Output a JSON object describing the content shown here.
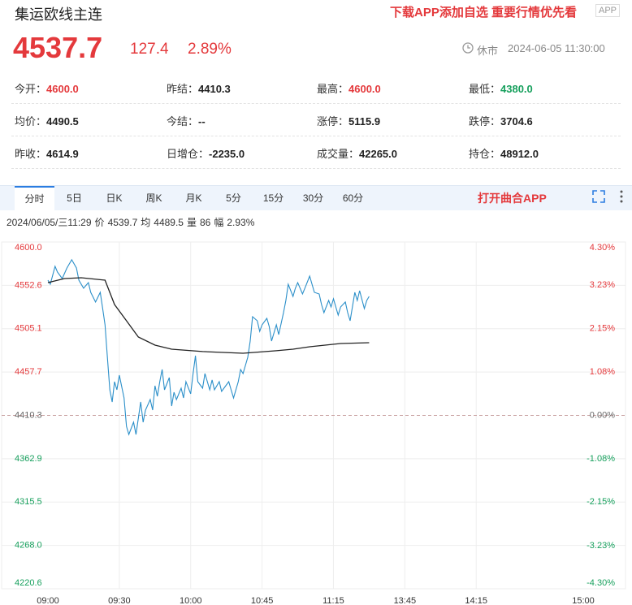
{
  "header": {
    "title": "集运欧线主连",
    "promo": "下载APP添加自选 重要行情优先看",
    "app_badge": "APP",
    "price": "4537.7",
    "change": "127.4",
    "change_pct": "2.89%",
    "status": "休市",
    "datetime": "2024-06-05 11:30:00"
  },
  "stats": [
    {
      "label": "今开：",
      "value": "4600.0",
      "color": "#e4393c"
    },
    {
      "label": "昨结：",
      "value": "4410.3",
      "color": "#222222"
    },
    {
      "label": "最高：",
      "value": "4600.0",
      "color": "#e4393c"
    },
    {
      "label": "最低：",
      "value": "4380.0",
      "color": "#17a05d"
    },
    {
      "label": "均价：",
      "value": "4490.5",
      "color": "#222222"
    },
    {
      "label": "今结：",
      "value": "--",
      "color": "#222222"
    },
    {
      "label": "涨停：",
      "value": "5115.9",
      "color": "#222222"
    },
    {
      "label": "跌停：",
      "value": "3704.6",
      "color": "#222222"
    },
    {
      "label": "昨收：",
      "value": "4614.9",
      "color": "#222222"
    },
    {
      "label": "日增仓：",
      "value": "-2235.0",
      "color": "#222222"
    },
    {
      "label": "成交量：",
      "value": "42265.0",
      "color": "#222222"
    },
    {
      "label": "持仓：",
      "value": "48912.0",
      "color": "#222222"
    }
  ],
  "tabs": [
    "分时",
    "5日",
    "日K",
    "周K",
    "月K",
    "5分",
    "15分",
    "30分",
    "60分"
  ],
  "active_tab": 0,
  "open_app": "打开曲合APP",
  "info": [
    "2024/06/05/三11:29",
    "价",
    "4539.7",
    "均",
    "4489.5",
    "量",
    "86",
    "幅",
    "2.93%"
  ],
  "chart_data": {
    "type": "line",
    "xlim": [
      0,
      225
    ],
    "xticks": [
      {
        "value": 0,
        "label": "09:00"
      },
      {
        "value": 30,
        "label": "09:30"
      },
      {
        "value": 60,
        "label": "10:00"
      },
      {
        "value": 90,
        "label": "10:45"
      },
      {
        "value": 120,
        "label": "11:15"
      },
      {
        "value": 150,
        "label": "13:45"
      },
      {
        "value": 180,
        "label": "14:15"
      },
      {
        "value": 225,
        "label": "15:00"
      }
    ],
    "ylim": [
      4220.6,
      4600
    ],
    "yticks": [
      {
        "value": 4600,
        "label": "4600.0"
      },
      4552.6,
      4505.1,
      4457.7,
      4410.3,
      4362.9,
      4315.5,
      {
        "value": 4268,
        "label": "4268.0"
      },
      4220.6
    ],
    "y2lim": [
      -4.3,
      4.3
    ],
    "y2ticks": [
      {
        "value": 4.3,
        "label": "4.30%"
      },
      {
        "value": 3.23,
        "label": "3.23%"
      },
      {
        "value": 2.15,
        "label": "2.15%"
      },
      {
        "value": 1.08,
        "label": "1.08%"
      },
      {
        "value": 0,
        "label": "0.00%"
      },
      {
        "value": -1.08,
        "label": "-1.08%"
      },
      {
        "value": -2.15,
        "label": "-2.15%"
      },
      {
        "value": -3.23,
        "label": "-3.23%"
      },
      {
        "value": -4.3,
        "label": "-4.30%"
      }
    ],
    "up_color": "#e4393c",
    "down_color": "#17a05d",
    "grid": true,
    "series": [
      {
        "color": "#2b8fc9",
        "x": [
          0,
          1,
          3,
          4,
          6,
          8,
          10,
          12,
          13,
          15,
          17,
          18,
          20,
          22,
          23,
          24,
          25,
          26,
          27,
          28,
          29,
          30,
          32,
          33,
          34,
          36,
          37,
          39,
          40,
          41,
          43,
          44,
          45,
          46,
          47,
          48,
          49,
          51,
          52,
          53,
          54,
          56,
          57,
          58,
          60,
          61,
          62,
          63,
          65,
          66,
          68,
          69,
          70,
          72,
          73,
          74,
          76,
          77,
          78,
          80,
          81,
          82,
          84,
          85,
          86,
          88,
          89,
          90,
          92,
          93,
          94,
          96,
          97,
          99,
          100,
          101,
          103,
          104,
          105,
          107,
          108,
          110,
          111,
          112,
          114,
          115,
          116,
          118,
          119,
          120,
          122,
          123,
          125,
          126,
          127,
          129,
          130,
          131,
          133,
          134,
          135
        ],
        "values": [
          4558.2,
          4553.8,
          4573.3,
          4567.1,
          4560.0,
          4571.6,
          4580.5,
          4571.6,
          4558.2,
          4549.4,
          4555.6,
          4544.9,
          4534.3,
          4544.9,
          4527.1,
          4509.4,
          4473.8,
          4438.3,
          4425.0,
          4447.2,
          4438.3,
          4454.3,
          4429.4,
          4398.3,
          4389.4,
          4402.8,
          4389.4,
          4425.0,
          4402.8,
          4416.1,
          4427.6,
          4416.1,
          4442.7,
          4431.2,
          4447.2,
          4460.5,
          4438.3,
          4451.6,
          4420.5,
          4435.6,
          4427.6,
          4440.1,
          4429.4,
          4447.2,
          4433.9,
          4456.1,
          4475.6,
          4447.2,
          4440.1,
          4456.1,
          4438.3,
          4449.0,
          4438.3,
          4447.2,
          4436.5,
          4440.1,
          4447.2,
          4438.3,
          4429.4,
          4447.2,
          4460.5,
          4456.1,
          4473.8,
          4491.6,
          4518.3,
          4513.8,
          4502.3,
          4509.4,
          4516.5,
          4507.6,
          4491.6,
          4509.4,
          4498.7,
          4522.7,
          4536.0,
          4553.8,
          4540.5,
          4549.4,
          4555.6,
          4543.1,
          4549.4,
          4562.7,
          4553.8,
          4544.9,
          4543.1,
          4531.6,
          4522.7,
          4536.0,
          4528.9,
          4537.8,
          4520.0,
          4528.9,
          4534.3,
          4522.7,
          4513.8,
          4544.9,
          4536.0,
          4546.7,
          4527.1,
          4536.0,
          4540.5
        ]
      },
      {
        "color": "#222222",
        "x": [
          0,
          7,
          14,
          24,
          28,
          33,
          38,
          45,
          52,
          65,
          82,
          96,
          103,
          110,
          123,
          135
        ],
        "values": [
          4555.6,
          4560.0,
          4560.9,
          4558.2,
          4531.6,
          4513.8,
          4496.0,
          4487.2,
          4482.7,
          4480.1,
          4478.3,
          4481.0,
          4482.7,
          4485.4,
          4488.9,
          4489.8
        ]
      }
    ]
  }
}
